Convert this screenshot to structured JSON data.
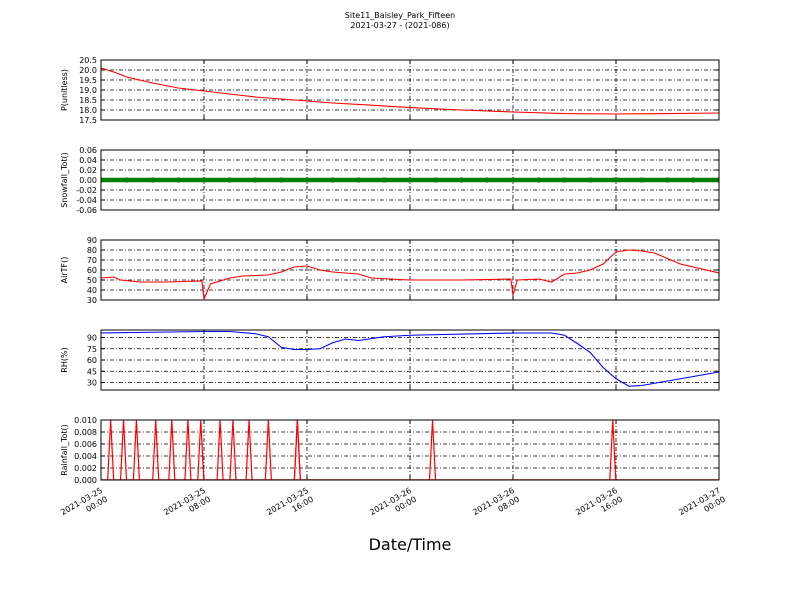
{
  "figure": {
    "title": "Site11_Baisley_Park_Fifteen",
    "subtitle": "2021-03-27 - (2021-086)",
    "xlabel": "Date/Time",
    "x_ticks": [
      "2021-03-25\n00:00",
      "2021-03-25\n08:00",
      "2021-03-25\n16:00",
      "2021-03-26\n00:00",
      "2021-03-26\n08:00",
      "2021-03-26\n16:00",
      "2021-03-27\n00:00"
    ]
  },
  "chart_data": [
    {
      "type": "line",
      "ylabel": "P(unitless)",
      "color": "#ff0000",
      "xlim": [
        "2021-03-25 00:00",
        "2021-03-27 00:00"
      ],
      "ylim": [
        17.5,
        20.5
      ],
      "y_ticks": [
        "17.5",
        "18.0",
        "18.5",
        "19.0",
        "19.5",
        "20.0",
        "20.5"
      ],
      "grid": true,
      "x": [
        "2021-03-25 00:00",
        "2021-03-25 01:00",
        "2021-03-25 02:00",
        "2021-03-25 04:00",
        "2021-03-25 06:00",
        "2021-03-25 08:00",
        "2021-03-25 10:00",
        "2021-03-25 12:00",
        "2021-03-25 14:00",
        "2021-03-25 16:00",
        "2021-03-25 18:00",
        "2021-03-25 20:00",
        "2021-03-26 00:00",
        "2021-03-26 04:00",
        "2021-03-26 08:00",
        "2021-03-26 12:00",
        "2021-03-26 16:00",
        "2021-03-26 20:00",
        "2021-03-27 00:00"
      ],
      "y": [
        20.1,
        19.9,
        19.65,
        19.35,
        19.1,
        18.95,
        18.8,
        18.65,
        18.55,
        18.45,
        18.35,
        18.28,
        18.12,
        18.0,
        17.9,
        17.82,
        17.8,
        17.82,
        17.85
      ]
    },
    {
      "type": "scatter",
      "ylabel": "Snowfall_Tot()",
      "color": "#008000",
      "xlim": [
        "2021-03-25 00:00",
        "2021-03-27 00:00"
      ],
      "ylim": [
        -0.06,
        0.06
      ],
      "y_ticks": [
        "-0.06",
        "-0.04",
        "-0.02",
        "0.00",
        "0.02",
        "0.04",
        "0.06"
      ],
      "grid": true,
      "x": [
        "2021-03-25 00:00",
        "2021-03-25 02:00",
        "2021-03-25 04:00",
        "2021-03-25 06:00",
        "2021-03-25 08:00",
        "2021-03-25 10:00",
        "2021-03-25 12:00",
        "2021-03-25 14:00",
        "2021-03-25 16:00",
        "2021-03-25 18:00",
        "2021-03-25 20:00",
        "2021-03-25 22:00",
        "2021-03-26 00:00",
        "2021-03-26 02:00",
        "2021-03-26 04:00",
        "2021-03-26 06:00",
        "2021-03-26 08:00",
        "2021-03-26 10:00",
        "2021-03-26 12:00",
        "2021-03-26 14:00",
        "2021-03-26 16:00",
        "2021-03-26 18:00",
        "2021-03-26 20:00",
        "2021-03-26 22:00",
        "2021-03-27 00:00"
      ],
      "y": [
        0,
        0,
        0,
        0,
        0,
        0,
        0,
        0,
        0,
        0,
        0,
        0,
        0,
        0,
        0,
        0,
        0,
        0,
        0,
        0,
        0,
        0,
        0,
        0,
        0
      ]
    },
    {
      "type": "line",
      "ylabel": "AirTF()",
      "color": "#ff0000",
      "xlim": [
        "2021-03-25 00:00",
        "2021-03-27 00:00"
      ],
      "ylim": [
        30,
        90
      ],
      "y_ticks": [
        "30",
        "40",
        "50",
        "60",
        "70",
        "80",
        "90"
      ],
      "grid": true,
      "x": [
        "2021-03-25 00:00",
        "2021-03-25 01:00",
        "2021-03-25 01:30",
        "2021-03-25 03:00",
        "2021-03-25 05:00",
        "2021-03-25 07:50",
        "2021-03-25 08:00",
        "2021-03-25 08:30",
        "2021-03-25 09:00",
        "2021-03-25 10:00",
        "2021-03-25 11:00",
        "2021-03-25 13:00",
        "2021-03-25 14:00",
        "2021-03-25 15:00",
        "2021-03-25 16:00",
        "2021-03-25 17:00",
        "2021-03-25 18:00",
        "2021-03-25 19:00",
        "2021-03-25 20:00",
        "2021-03-25 21:00",
        "2021-03-26 00:00",
        "2021-03-26 04:00",
        "2021-03-26 07:50",
        "2021-03-26 08:00",
        "2021-03-26 08:20",
        "2021-03-26 10:00",
        "2021-03-26 11:00",
        "2021-03-26 12:00",
        "2021-03-26 13:00",
        "2021-03-26 14:00",
        "2021-03-26 15:00",
        "2021-03-26 16:00",
        "2021-03-26 17:00",
        "2021-03-26 18:00",
        "2021-03-26 19:00",
        "2021-03-26 21:00",
        "2021-03-27 00:00"
      ],
      "y": [
        52,
        53,
        50,
        48,
        48,
        49,
        31,
        46,
        48,
        52,
        54,
        55,
        58,
        63,
        64,
        60,
        58,
        57,
        56,
        52,
        50,
        50,
        51,
        35,
        50,
        51,
        48,
        56,
        57,
        60,
        66,
        78,
        80,
        79,
        77,
        66,
        57
      ]
    },
    {
      "type": "line",
      "ylabel": "RH(%)",
      "color": "#0000ff",
      "xlim": [
        "2021-03-25 00:00",
        "2021-03-27 00:00"
      ],
      "ylim": [
        20,
        100
      ],
      "y_ticks": [
        "30",
        "45",
        "60",
        "75",
        "90"
      ],
      "grid": true,
      "x": [
        "2021-03-25 00:00",
        "2021-03-25 04:00",
        "2021-03-25 08:00",
        "2021-03-25 10:00",
        "2021-03-25 12:00",
        "2021-03-25 13:00",
        "2021-03-25 14:00",
        "2021-03-25 15:00",
        "2021-03-25 16:00",
        "2021-03-25 17:00",
        "2021-03-25 18:00",
        "2021-03-25 19:00",
        "2021-03-25 20:00",
        "2021-03-25 22:00",
        "2021-03-26 00:00",
        "2021-03-26 08:00",
        "2021-03-26 10:00",
        "2021-03-26 11:00",
        "2021-03-26 12:00",
        "2021-03-26 13:00",
        "2021-03-26 14:00",
        "2021-03-26 15:00",
        "2021-03-26 16:00",
        "2021-03-26 17:00",
        "2021-03-26 18:00",
        "2021-03-26 20:00",
        "2021-03-26 22:00",
        "2021-03-27 00:00"
      ],
      "y": [
        96,
        97,
        98,
        98,
        95,
        91,
        77,
        74,
        74,
        75,
        83,
        88,
        86,
        91,
        93,
        96,
        96,
        96,
        93,
        82,
        70,
        50,
        35,
        25,
        26,
        32,
        38,
        44
      ]
    },
    {
      "type": "line",
      "ylabel": "Rainfall_Tot()",
      "color": "#ff0000",
      "xlim": [
        "2021-03-25 00:00",
        "2021-03-27 00:00"
      ],
      "ylim": [
        0,
        0.01
      ],
      "y_ticks": [
        "0.000",
        "0.002",
        "0.004",
        "0.006",
        "0.008",
        "0.010"
      ],
      "grid": true,
      "x": [
        "2021-03-25 00:45",
        "2021-03-25 01:45",
        "2021-03-25 02:45",
        "2021-03-25 04:15",
        "2021-03-25 05:30",
        "2021-03-25 06:45",
        "2021-03-25 07:45",
        "2021-03-25 09:15",
        "2021-03-25 10:15",
        "2021-03-25 11:30",
        "2021-03-25 13:00",
        "2021-03-25 15:15",
        "2021-03-25 15:15",
        "2021-03-26 01:45",
        "2021-03-26 15:45"
      ],
      "y": [
        0.01,
        0.01,
        0.01,
        0.01,
        0.01,
        0.01,
        0.01,
        0.01,
        0.01,
        0.01,
        0.01,
        0.01,
        0.01,
        0.01,
        0.01
      ]
    }
  ]
}
